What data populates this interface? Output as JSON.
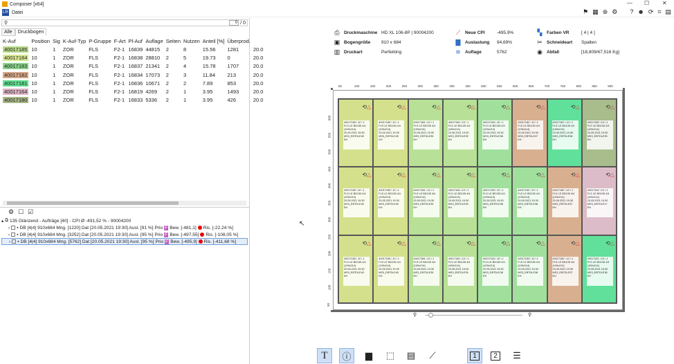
{
  "window": {
    "title": "Composer [x64]"
  },
  "menu": {
    "logo": "LR",
    "items": [
      "Datei"
    ]
  },
  "search": {
    "value": "",
    "current": "0",
    "total": "/ 0"
  },
  "tabs": [
    "Alle",
    "Druckbogen"
  ],
  "orders_table": {
    "columns": [
      "K-Auf",
      "Position",
      "Sig",
      "K-Auf-Typ",
      "P-Gruppe",
      "F-Art",
      "Pl-Auf",
      "Auflage",
      "Seiten",
      "Nutzen",
      "Anteil [%]",
      "Überprod.",
      ""
    ],
    "rows": [
      {
        "kauf": "40017185",
        "color": "#b8d98a",
        "cells": [
          "10",
          "1",
          "ZOR",
          "FLS",
          "F2-1",
          "16839",
          "44815",
          "2",
          "8",
          "15.56",
          "1281",
          "20.0"
        ]
      },
      {
        "kauf": "40017184",
        "color": "#d8e88e",
        "cells": [
          "10",
          "1",
          "ZOR",
          "FLS",
          "F2-1",
          "16838",
          "28810",
          "2",
          "5",
          "19.73",
          "0",
          "20.0"
        ]
      },
      {
        "kauf": "40017183",
        "color": "#8ad48a",
        "cells": [
          "10",
          "1",
          "ZOR",
          "FLS",
          "F2-1",
          "16837",
          "21341",
          "2",
          "4",
          "15.78",
          "1707",
          "20.0"
        ]
      },
      {
        "kauf": "40017182",
        "color": "#d8a888",
        "cells": [
          "10",
          "1",
          "ZOR",
          "FLS",
          "F2-1",
          "16834",
          "17073",
          "2",
          "3",
          "11.84",
          "213",
          "20.0"
        ]
      },
      {
        "kauf": "40017181",
        "color": "#60e090",
        "cells": [
          "10",
          "1",
          "ZOR",
          "FLS",
          "F2-1",
          "16836",
          "10671",
          "2",
          "2",
          "7.89",
          "853",
          "20.0"
        ]
      },
      {
        "kauf": "40017164",
        "color": "#dcb4c4",
        "cells": [
          "10",
          "1",
          "ZOR",
          "FLS",
          "F2-1",
          "16819",
          "4269",
          "2",
          "1",
          "3.95",
          "1493",
          "20.0"
        ]
      },
      {
        "kauf": "40017180",
        "color": "#a8b888",
        "cells": [
          "10",
          "1",
          "ZOR",
          "FLS",
          "F2-1",
          "16833",
          "5336",
          "2",
          "1",
          "3.95",
          "426",
          "20.0"
        ]
      }
    ]
  },
  "tree": {
    "header": "135 Glänzend  - Aufträge [40] - CPI Ø -491,52 % - 90004200",
    "items": [
      {
        "text": "DB  [4|4] 910x684  Mng. [1220]  Dat [20.05.2021 19:30]  Ausl. [91 %]  Prio",
        "bew": "Bew. [-481,1]",
        "ris": "Ris. [-22,24 %]"
      },
      {
        "text": "DB  [4|4] 910x684  Mng. [3252]  Dat [20.05.2021 19:30]  Ausl. [95 %]  Prio",
        "bew": "Bew. [-497,55]",
        "ris": "Ris. [-108,05 %]"
      },
      {
        "text": "DB  [4|4] 910x684  Mng. [5762]  Dat [20.05.2021 19:30]  Ausl. [95 %]  Prio",
        "bew": "Bew. [-495,9]",
        "ris": "Ris. [-411,68 %]"
      }
    ],
    "flag": "F"
  },
  "info": {
    "druckmaschine": {
      "label": "Druckmaschine",
      "value": "HD XL 106-8P | 90004200"
    },
    "bogengroesse": {
      "label": "Bogengröße",
      "value": "910 x 684"
    },
    "druckart": {
      "label": "Druckart",
      "value": "Perfekting"
    },
    "neue_cpi": {
      "label": "Neue CPI",
      "value": "-495,9%"
    },
    "auslastung": {
      "label": "Auslastung",
      "value": "94,69%"
    },
    "auflage": {
      "label": "Auflage",
      "value": "5762"
    },
    "farben": {
      "label": "Farben VR",
      "value": "[ 4 | 4 ]"
    },
    "schneideart": {
      "label": "Schneideart",
      "value": "Spalten"
    },
    "abfall": {
      "label": "Abfall",
      "value": "[18,809/67,516 Kg]"
    }
  },
  "ruler_top": [
    "50",
    "100",
    "150",
    "200",
    "250",
    "300",
    "350",
    "400",
    "450",
    "500",
    "550",
    "600",
    "650",
    "700",
    "750",
    "800",
    "850",
    "900"
  ],
  "ruler_left": [
    "600",
    "550",
    "500",
    "450",
    "400",
    "350",
    "300",
    "250",
    "200",
    "150",
    "100",
    "50"
  ],
  "sheet_cells": [
    {
      "color": "#d4e08c",
      "lines": [
        "40017185 \\ 10 \\ 1",
        "FLS LE BD135 4/4",
        "(109x214)",
        "20.05.2021 19:30",
        "MS3_EBTDLE40",
        "EH"
      ]
    },
    {
      "color": "#d4e08c",
      "lines": [
        "40017185 \\ 10 \\ 1",
        "FLS LE BD135 4/4",
        "(109x214)",
        "20.05.2021 19:30",
        "MS3_EBTDLE40",
        "EH"
      ]
    },
    {
      "color": "#b8e096",
      "lines": [
        "40017184 \\ 10 \\ 1",
        "FLS LE BD135 4/4",
        "(109x214)",
        "20.05.2021 19:30",
        "MS3_EBTDLE39",
        "EH"
      ]
    },
    {
      "color": "#b8e096",
      "lines": [
        "40017184 \\ 10 \\ 1",
        "FLS LE BD135 4/4",
        "(109x214)",
        "20.05.2021 19:30",
        "MS3_EBTDLE39",
        "EH"
      ]
    },
    {
      "color": "#a0e09c",
      "lines": [
        "40017183 \\ 10 \\ 1",
        "FLS LE BD135 4/4",
        "(109x214)",
        "20.05.2021 19:30",
        "MS3_EBTDLE38",
        "EH"
      ]
    },
    {
      "color": "#d8b090",
      "lines": [
        "40017182 \\ 10 \\ 1",
        "FLS LE BD135 4/4",
        "(109x214)",
        "20.05.2021 19:30",
        "MS3_EBTDLE37",
        "EH"
      ]
    },
    {
      "color": "#60e09a",
      "lines": [
        "40017181 \\ 10 \\ 1",
        "FLS LE BD135 4/4",
        "(109x214)",
        "20.05.2021 19:30",
        "MS3_EBTDLE36",
        "EH"
      ]
    },
    {
      "color": "#a8bc8c",
      "lines": [
        "40017180 \\ 10 \\ 1",
        "FLS LE BD135 4/4",
        "(109x214)",
        "20.05.2021 19:30",
        "MS3_EBTDLE35",
        "EH"
      ]
    },
    {
      "color": "#d4e08c",
      "lines": [
        "40017185 \\ 10 \\ 1",
        "FLS LE BD135 4/4",
        "(109x214)",
        "20.05.2021 19:30",
        "MS3_EBTDLE40",
        "EH"
      ]
    },
    {
      "color": "#d4e08c",
      "lines": [
        "40017185 \\ 10 \\ 1",
        "FLS LE BD135 4/4",
        "(109x214)",
        "20.05.2021 19:30",
        "MS3_EBTDLE40",
        "EH"
      ]
    },
    {
      "color": "#b8e096",
      "lines": [
        "40017184 \\ 10 \\ 1",
        "FLS LE BD135 4/4",
        "(109x214)",
        "20.05.2021 19:30",
        "MS3_EBTDLE39",
        "EH"
      ]
    },
    {
      "color": "#b8e096",
      "lines": [
        "40017184 \\ 10 \\ 1",
        "FLS LE BD135 4/4",
        "(109x214)",
        "20.05.2021 19:30",
        "MS3_EBTDLE39",
        "EH"
      ]
    },
    {
      "color": "#a0e09c",
      "lines": [
        "40017183 \\ 10 \\ 1",
        "FLS LE BD135 4/4",
        "(109x214)",
        "20.05.2021 19:30",
        "MS3_EBTDLE38",
        "EH"
      ]
    },
    {
      "color": "#a0e09c",
      "lines": [
        "40017183 \\ 10 \\ 1",
        "FLS LE BD135 4/4",
        "(109x214)",
        "20.05.2021 19:30",
        "MS3_EBTDLE38",
        "EH"
      ]
    },
    {
      "color": "#d8b090",
      "lines": [
        "40017182 \\ 10 \\ 1",
        "FLS LE BD135 4/4",
        "(109x214)",
        "20.05.2021 19:30",
        "MS3_EBTDLE37",
        "EH"
      ]
    },
    {
      "color": "#dcbcc8",
      "lines": [
        "40017164 \\ 10 \\ 1",
        "FLS LE BD135 4/4",
        "(109x214)",
        "20.05.2021 19:30",
        "MS3_EBTDLE17",
        "EH"
      ]
    },
    {
      "color": "#d4e08c",
      "lines": [
        "40017185 \\ 10 \\ 1",
        "FLS LE BD135 4/4",
        "(109x214)",
        "20.05.2021 19:30",
        "MS3_EBTDLE40",
        "EH"
      ]
    },
    {
      "color": "#d4e08c",
      "lines": [
        "40017185 \\ 10 \\ 1",
        "FLS LE BD135 4/4",
        "(109x214)",
        "20.05.2021 19:30",
        "MS3_EBTDLE40",
        "EH"
      ]
    },
    {
      "color": "#b8e096",
      "lines": [
        "40017184 \\ 10 \\ 1",
        "FLS LE BD135 4/4",
        "(109x214)",
        "20.05.2021 19:30",
        "MS3_EBTDLE39",
        "EH"
      ]
    },
    {
      "color": "#b8e096",
      "lines": [
        "40017184 \\ 10 \\ 1",
        "FLS LE BD135 4/4",
        "(109x214)",
        "20.05.2021 19:30",
        "MS3_EBTDLE39",
        "EH"
      ]
    },
    {
      "color": "#a0e09c",
      "lines": [
        "40017183 \\ 10 \\ 1",
        "FLS LE BD135 4/4",
        "(109x214)",
        "20.05.2021 19:30",
        "MS3_EBTDLE38",
        "EH"
      ]
    },
    {
      "color": "#a0e09c",
      "lines": [
        "40017183 \\ 10 \\ 1",
        "FLS LE BD135 4/4",
        "(109x214)",
        "20.05.2021 19:30",
        "MS3_EBTDLE38",
        "EH"
      ]
    },
    {
      "color": "#d8b090",
      "lines": [
        "40017182 \\ 10 \\ 1",
        "FLS LE BD135 4/4",
        "(109x214)",
        "20.05.2021 19:30",
        "MS3_EBTDLE37",
        "EH"
      ]
    },
    {
      "color": "#60e09a",
      "lines": [
        "40017181 \\ 10 \\ 1",
        "FLS LE BD135 4/4",
        "(109x214)",
        "20.05.2021 19:30",
        "MS3_EBTDLE36",
        "EH"
      ]
    }
  ],
  "bottom_toolbar": {
    "icons": [
      "text-tool-icon",
      "info-icon",
      "image-icon",
      "select-icon",
      "list-grid-icon",
      "chart-icon",
      "page-1-icon",
      "page-2-icon",
      "list-icon",
      "layout-1-icon",
      "layout-2-icon",
      "magic-wand-icon",
      "save-icon"
    ],
    "labels": {
      "text": "T",
      "page1": "1",
      "page2": "2",
      "sub1": "1",
      "sub2": "2"
    }
  }
}
